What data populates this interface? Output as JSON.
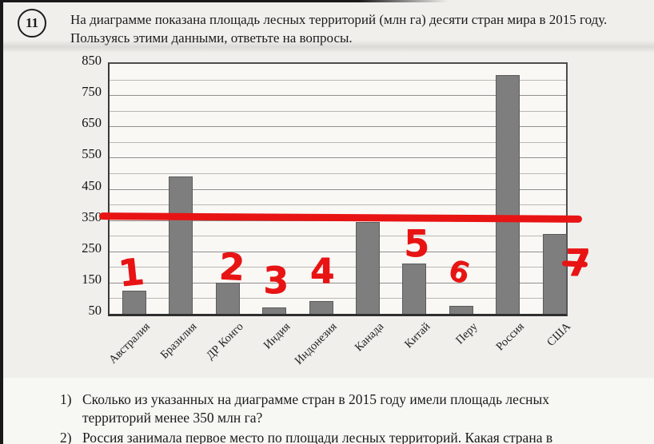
{
  "problem": {
    "number": "11",
    "statement_lines": [
      "На диаграмме показана площадь лесных территорий (млн га) десяти стран мира в 2015 году.",
      "Пользуясь этими данными, ответьте на вопросы."
    ]
  },
  "chart_data": {
    "type": "bar",
    "title": "",
    "xlabel": "",
    "ylabel": "",
    "categories": [
      "Австралия",
      "Бразилия",
      "ДР Конго",
      "Индия",
      "Индонезия",
      "Канада",
      "Китай",
      "Перу",
      "Россия",
      "США"
    ],
    "values": [
      125,
      490,
      150,
      70,
      90,
      345,
      210,
      75,
      815,
      305
    ],
    "ylim": [
      50,
      850
    ],
    "ytick_labels": [
      "850",
      "750",
      "650",
      "550",
      "450",
      "350",
      "250",
      "150",
      "50"
    ],
    "gridline_step": 50,
    "grid": true,
    "legend": "none",
    "bar_color": "#7e7e7e"
  },
  "annotations": {
    "color": "#e81414",
    "threshold_line": {
      "value": 350
    },
    "marks": [
      {
        "label": "1",
        "country": "Австралия"
      },
      {
        "label": "2",
        "country": "ДР Конго"
      },
      {
        "label": "3",
        "country": "Индия"
      },
      {
        "label": "4",
        "country": "Индонезия"
      },
      {
        "label": "5",
        "country": "Китай"
      },
      {
        "label": "6",
        "country": "Перу"
      },
      {
        "label": "7",
        "country": "США",
        "crossed": true
      }
    ]
  },
  "questions": [
    {
      "num": "1)",
      "lines": [
        "Сколько из указанных на диаграмме стран в 2015 году имели площадь лесных",
        "территорий менее 350 млн га?"
      ]
    },
    {
      "num": "2)",
      "lines": [
        "Россия занимала первое место по площади лесных территорий. Какая страна в"
      ]
    }
  ]
}
